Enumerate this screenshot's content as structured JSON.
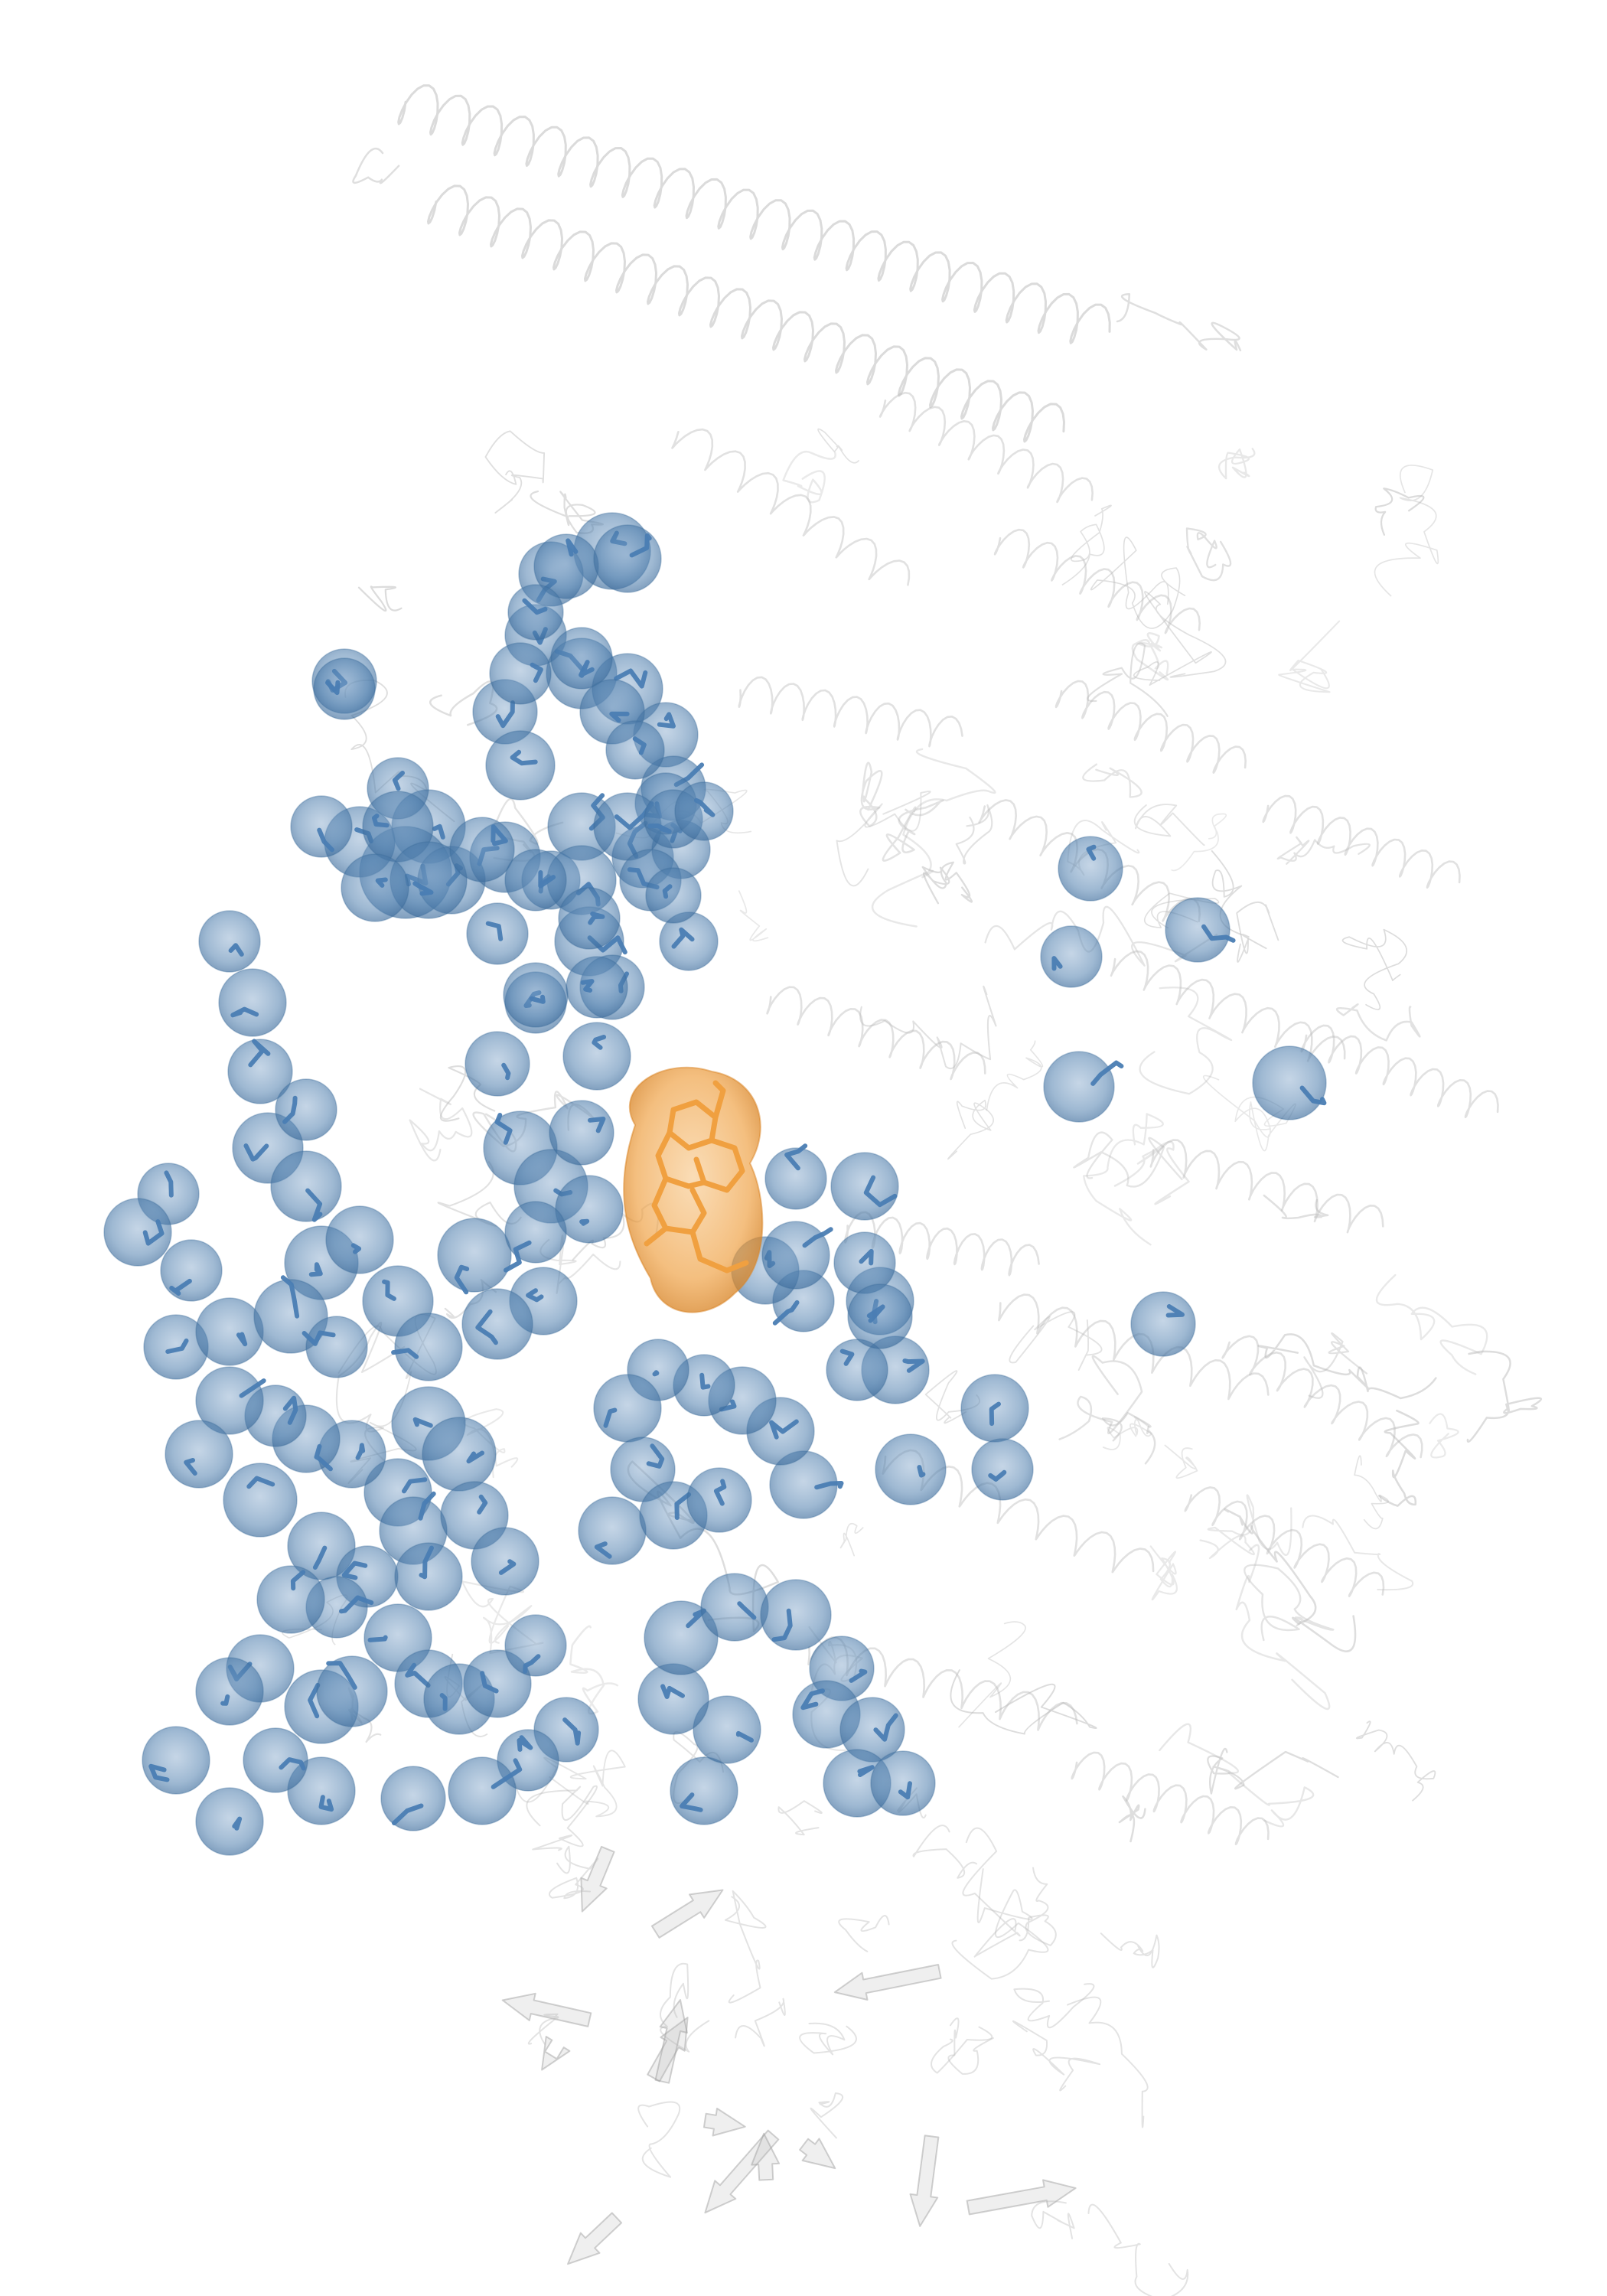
{
  "scene": {
    "kind": "molecular-render",
    "background_color": "#ffffff",
    "protein_color": "#b8b8b8",
    "residue_color": "#4a7db3",
    "residue_surface_color": "#5b86b0",
    "ligand_color": "#f0a040",
    "ligand_surface_color": "#f2a64a"
  }
}
